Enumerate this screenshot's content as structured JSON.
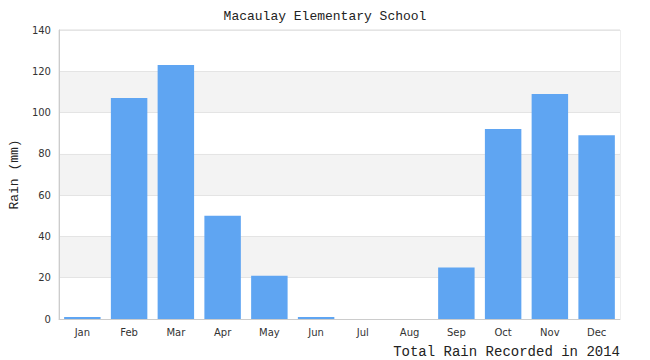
{
  "chart_data": {
    "type": "bar",
    "title": "Macaulay Elementary School",
    "ylabel": "Rain (mm)",
    "xlabel": "Total Rain Recorded in 2014",
    "categories": [
      "Jan",
      "Feb",
      "Mar",
      "Apr",
      "May",
      "Jun",
      "Jul",
      "Aug",
      "Sep",
      "Oct",
      "Nov",
      "Dec"
    ],
    "values": [
      1,
      107,
      123,
      50,
      21,
      1,
      0,
      0,
      25,
      92,
      109,
      89
    ],
    "color": "#5fa5f2",
    "ylim": [
      0,
      140
    ],
    "yticks": [
      0,
      20,
      40,
      60,
      80,
      100,
      120,
      140
    ],
    "grid": true
  }
}
